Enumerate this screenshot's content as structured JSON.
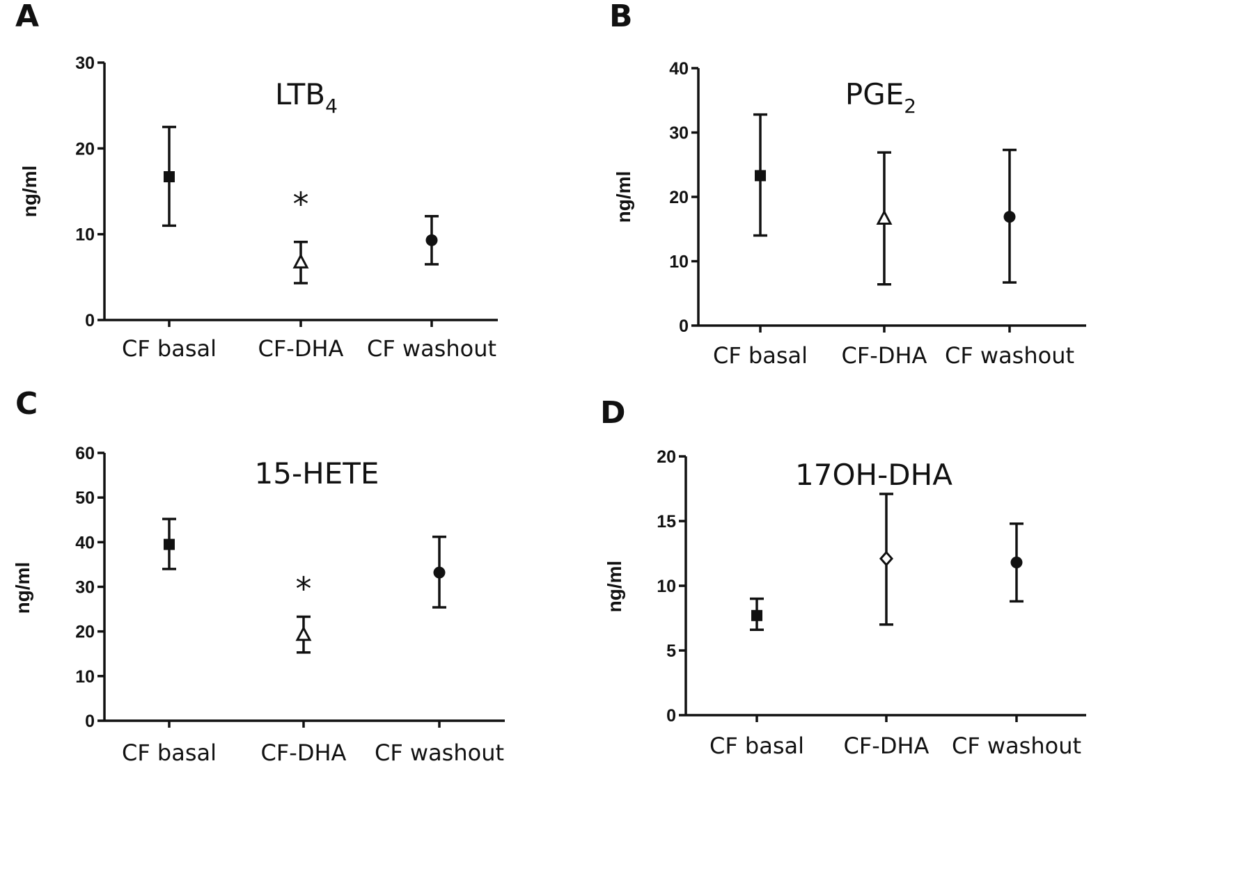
{
  "chart_data": [
    {
      "panel": "A",
      "type": "scatter",
      "title": "LTB",
      "title_subscript": "4",
      "ylabel": "ng/ml",
      "ylim": [
        0,
        30
      ],
      "yticks": [
        "0",
        "10",
        "20",
        "30"
      ],
      "categories": [
        "CF basal",
        "CF-DHA",
        "CF washout"
      ],
      "markers": [
        "square",
        "triangle",
        "circle"
      ],
      "values": [
        16.7,
        6.7,
        9.3
      ],
      "err_low": [
        11.0,
        4.3,
        6.5
      ],
      "err_high": [
        22.5,
        9.1,
        12.1
      ],
      "annotations": [
        {
          "category": "CF-DHA",
          "text": "*",
          "y": 13.5
        }
      ]
    },
    {
      "panel": "B",
      "type": "scatter",
      "title": "PGE",
      "title_subscript": "2",
      "ylabel": "ng/ml",
      "ylim": [
        0,
        40
      ],
      "yticks": [
        "0",
        "10",
        "20",
        "30",
        "40"
      ],
      "categories": [
        "CF basal",
        "CF-DHA",
        "CF washout"
      ],
      "markers": [
        "square",
        "triangle",
        "circle"
      ],
      "values": [
        23.3,
        16.6,
        16.9
      ],
      "err_low": [
        14.0,
        6.4,
        6.7
      ],
      "err_high": [
        32.8,
        26.9,
        27.3
      ],
      "annotations": []
    },
    {
      "panel": "C",
      "type": "scatter",
      "title": "15-HETE",
      "title_subscript": "",
      "ylabel": "ng/ml",
      "ylim": [
        0,
        60
      ],
      "yticks": [
        "0",
        "10",
        "20",
        "30",
        "40",
        "50",
        "60"
      ],
      "categories": [
        "CF basal",
        "CF-DHA",
        "CF washout"
      ],
      "markers": [
        "square",
        "triangle",
        "circle"
      ],
      "values": [
        39.5,
        19.2,
        33.2
      ],
      "err_low": [
        34.0,
        15.3,
        25.4
      ],
      "err_high": [
        45.2,
        23.3,
        41.2
      ],
      "annotations": [
        {
          "category": "CF-DHA",
          "text": "*",
          "y": 29.5
        }
      ]
    },
    {
      "panel": "D",
      "type": "scatter",
      "title": "17OH-DHA",
      "title_subscript": "",
      "ylabel": "ng/ml",
      "ylim": [
        0,
        20
      ],
      "yticks": [
        "0",
        "5",
        "10",
        "15",
        "20"
      ],
      "categories": [
        "CF basal",
        "CF-DHA",
        "CF washout"
      ],
      "markers": [
        "square",
        "diamond",
        "circle"
      ],
      "values": [
        7.7,
        12.1,
        11.8
      ],
      "err_low": [
        6.6,
        7.0,
        8.8
      ],
      "err_high": [
        9.0,
        17.1,
        14.8
      ],
      "annotations": []
    }
  ]
}
